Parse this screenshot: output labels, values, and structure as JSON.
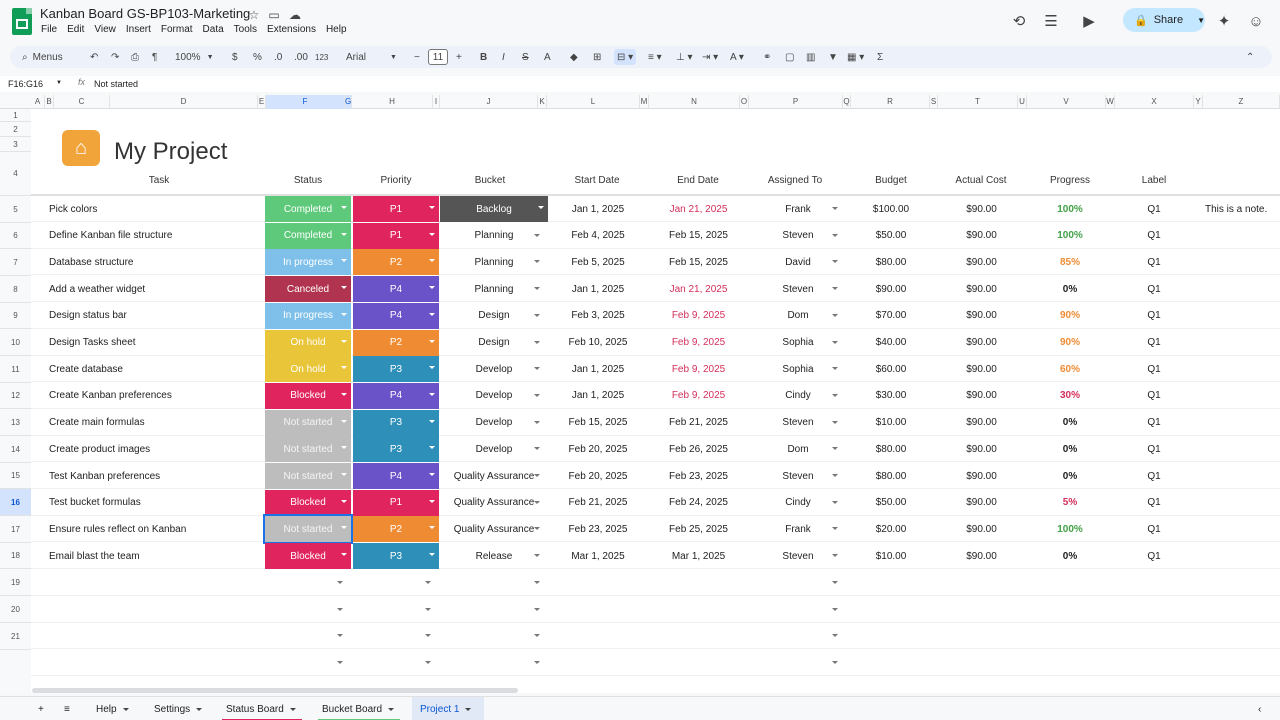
{
  "doc": {
    "title": "Kanban Board GS-BP103-Marketing",
    "menus": [
      "File",
      "Edit",
      "View",
      "Insert",
      "Format",
      "Data",
      "Tools",
      "Extensions",
      "Help"
    ],
    "share": "Share"
  },
  "toolbar": {
    "menus": "Menus",
    "zoom": "100%",
    "currency": "$",
    "percent": "%",
    "dec_dec": ".0",
    "inc_dec": ".00",
    "number_fmt": "123",
    "font": "Arial",
    "font_size": "11"
  },
  "formula": {
    "name_box": "F16:G16",
    "value": "Not started"
  },
  "columns": [
    "A",
    "B",
    "C",
    "D",
    "E",
    "F",
    "G",
    "H",
    "I",
    "J",
    "K",
    "L",
    "M",
    "N",
    "O",
    "P",
    "Q",
    "R",
    "S",
    "T",
    "U",
    "V",
    "W",
    "X",
    "Y",
    "Z"
  ],
  "row_numbers": [
    "1",
    "2",
    "3",
    "4",
    "5",
    "6",
    "7",
    "8",
    "9",
    "10",
    "11",
    "12",
    "13",
    "14",
    "15",
    "16",
    "17",
    "18",
    "19",
    "20",
    "21"
  ],
  "project_title": "My Project",
  "headers": {
    "task": "Task",
    "status": "Status",
    "priority": "Priority",
    "bucket": "Bucket",
    "start": "Start Date",
    "end": "End Date",
    "assigned": "Assigned To",
    "budget": "Budget",
    "actual": "Actual Cost",
    "progress": "Progress",
    "label": "Label"
  },
  "colors": {
    "Completed": "#5ec97a",
    "In progress": "#7ec0ea",
    "Canceled": "#b0344f",
    "On hold": "#e9c53a",
    "Blocked": "#e0245e",
    "Not started": "#bdbdbd",
    "P1": "#e0245e",
    "P2": "#ef8c33",
    "P3": "#2e8fb8",
    "P4": "#6a53c9",
    "Backlog": "#555555",
    "progress_green": "#43a047",
    "progress_orange": "#ef8c33",
    "progress_red": "#d32f5a"
  },
  "tasks": [
    {
      "task": "Pick colors",
      "status": "Completed",
      "priority": "P1",
      "bucket": "Backlog",
      "start": "Jan 1, 2025",
      "end": "Jan 21, 2025",
      "end_red": true,
      "assigned": "Frank",
      "budget": "$100.00",
      "actual": "$90.00",
      "progress": "100%",
      "label": "Q1",
      "note": "This is a note."
    },
    {
      "task": "Define Kanban file structure",
      "status": "Completed",
      "priority": "P1",
      "bucket": "Planning",
      "start": "Feb 4, 2025",
      "end": "Feb 15, 2025",
      "assigned": "Steven",
      "budget": "$50.00",
      "actual": "$90.00",
      "progress": "100%",
      "label": "Q1"
    },
    {
      "task": "Database structure",
      "status": "In progress",
      "priority": "P2",
      "bucket": "Planning",
      "start": "Feb 5, 2025",
      "end": "Feb 15, 2025",
      "assigned": "David",
      "budget": "$80.00",
      "actual": "$90.00",
      "progress": "85%",
      "label": "Q1"
    },
    {
      "task": "Add a weather widget",
      "status": "Canceled",
      "priority": "P4",
      "bucket": "Planning",
      "start": "Jan 1, 2025",
      "end": "Jan 21, 2025",
      "end_red": true,
      "assigned": "Steven",
      "budget": "$90.00",
      "actual": "$90.00",
      "progress": "0%",
      "label": "Q1"
    },
    {
      "task": "Design status bar",
      "status": "In progress",
      "priority": "P4",
      "bucket": "Design",
      "start": "Feb 3, 2025",
      "end": "Feb 9, 2025",
      "end_red": true,
      "assigned": "Dom",
      "budget": "$70.00",
      "actual": "$90.00",
      "progress": "90%",
      "label": "Q1"
    },
    {
      "task": "Design Tasks sheet",
      "status": "On hold",
      "priority": "P2",
      "bucket": "Design",
      "start": "Feb 10, 2025",
      "end": "Feb 9, 2025",
      "end_red": true,
      "assigned": "Sophia",
      "budget": "$40.00",
      "actual": "$90.00",
      "progress": "90%",
      "label": "Q1"
    },
    {
      "task": "Create database",
      "status": "On hold",
      "priority": "P3",
      "bucket": "Develop",
      "start": "Jan 1, 2025",
      "end": "Feb 9, 2025",
      "end_red": true,
      "assigned": "Sophia",
      "budget": "$60.00",
      "actual": "$90.00",
      "progress": "60%",
      "label": "Q1"
    },
    {
      "task": "Create Kanban preferences",
      "status": "Blocked",
      "priority": "P4",
      "bucket": "Develop",
      "start": "Jan 1, 2025",
      "end": "Feb 9, 2025",
      "end_red": true,
      "assigned": "Cindy",
      "budget": "$30.00",
      "actual": "$90.00",
      "progress": "30%",
      "label": "Q1"
    },
    {
      "task": "Create main formulas",
      "status": "Not started",
      "priority": "P3",
      "bucket": "Develop",
      "start": "Feb 15, 2025",
      "end": "Feb 21, 2025",
      "assigned": "Steven",
      "budget": "$10.00",
      "actual": "$90.00",
      "progress": "0%",
      "label": "Q1"
    },
    {
      "task": "Create product images",
      "status": "Not started",
      "priority": "P3",
      "bucket": "Develop",
      "start": "Feb 20, 2025",
      "end": "Feb 26, 2025",
      "assigned": "Dom",
      "budget": "$80.00",
      "actual": "$90.00",
      "progress": "0%",
      "label": "Q1"
    },
    {
      "task": "Test Kanban preferences",
      "status": "Not started",
      "priority": "P4",
      "bucket": "Quality Assurance",
      "start": "Feb 20, 2025",
      "end": "Feb 23, 2025",
      "assigned": "Steven",
      "budget": "$80.00",
      "actual": "$90.00",
      "progress": "0%",
      "label": "Q1"
    },
    {
      "task": "Test bucket formulas",
      "status": "Blocked",
      "priority": "P1",
      "bucket": "Quality Assurance",
      "start": "Feb 21, 2025",
      "end": "Feb 24, 2025",
      "assigned": "Cindy",
      "budget": "$50.00",
      "actual": "$90.00",
      "progress": "5%",
      "label": "Q1"
    },
    {
      "task": "Ensure rules reflect on Kanban",
      "status": "Not started",
      "priority": "P2",
      "bucket": "Quality Assurance",
      "start": "Feb 23, 2025",
      "end": "Feb 25, 2025",
      "assigned": "Frank",
      "budget": "$20.00",
      "actual": "$90.00",
      "progress": "100%",
      "label": "Q1"
    },
    {
      "task": "Email blast the team",
      "status": "Blocked",
      "priority": "P3",
      "bucket": "Release",
      "start": "Mar 1, 2025",
      "end": "Mar 1, 2025",
      "assigned": "Steven",
      "budget": "$10.00",
      "actual": "$90.00",
      "progress": "0%",
      "label": "Q1"
    }
  ],
  "sheets": [
    {
      "name": "Help",
      "color": ""
    },
    {
      "name": "Settings",
      "color": ""
    },
    {
      "name": "Status Board",
      "color": "#e0245e"
    },
    {
      "name": "Bucket Board",
      "color": "#5ec97a"
    },
    {
      "name": "Project 1",
      "color": "",
      "active": true
    }
  ]
}
